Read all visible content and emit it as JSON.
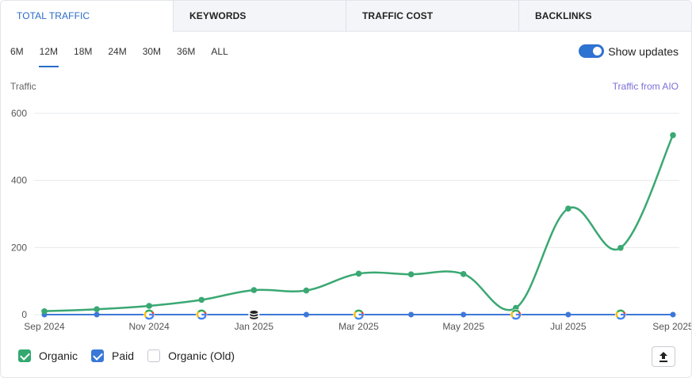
{
  "tabs": [
    {
      "label": "TOTAL TRAFFIC",
      "active": true
    },
    {
      "label": "KEYWORDS"
    },
    {
      "label": "TRAFFIC COST"
    },
    {
      "label": "BACKLINKS"
    }
  ],
  "ranges": [
    "6M",
    "12M",
    "18M",
    "24M",
    "30M",
    "36M",
    "ALL"
  ],
  "active_range": "12M",
  "toggle": {
    "label": "Show updates",
    "on": true
  },
  "y_title": "Traffic",
  "aio_link": "Traffic from AIO",
  "legend": [
    {
      "label": "Organic",
      "checked": true,
      "color": "#32a96f"
    },
    {
      "label": "Paid",
      "checked": true,
      "color": "#3a78d8"
    },
    {
      "label": "Organic (Old)",
      "checked": false
    }
  ],
  "colors": {
    "organic": "#3aa873",
    "paid": "#3d78d8",
    "accent": "#2a6bc8"
  },
  "export_icon": "upload-icon",
  "chart_data": {
    "type": "line",
    "x_tick_labels": [
      "Sep 2024",
      "Nov 2024",
      "Jan 2025",
      "Mar 2025",
      "May 2025",
      "Jul 2025",
      "Sep 2025"
    ],
    "y_ticks": [
      0,
      200,
      400,
      600
    ],
    "ylim": [
      0,
      600
    ],
    "grid": true,
    "points": [
      "Sep 2024",
      "Oct 2024",
      "Nov 2024",
      "Dec 2024",
      "Jan 2025",
      "Feb 2025",
      "Mar 2025",
      "Apr 2025",
      "May 2025",
      "Jun 2025",
      "Jul 2025",
      "Aug 2025",
      "Sep 2025"
    ],
    "series": [
      {
        "name": "Organic",
        "values": [
          10,
          16,
          26,
          44,
          73,
          72,
          122,
          120,
          121,
          20,
          316,
          199,
          535
        ]
      },
      {
        "name": "Paid",
        "values": [
          0,
          0,
          0,
          0,
          0,
          0,
          0,
          0,
          0,
          0,
          0,
          0,
          0
        ]
      }
    ],
    "update_markers": [
      {
        "at": "Nov 2024",
        "icon": "google-icon"
      },
      {
        "at": "Dec 2024",
        "icon": "google-icon"
      },
      {
        "at": "Jan 2025",
        "icon": "database-icon"
      },
      {
        "at": "Mar 2025",
        "icon": "google-icon"
      },
      {
        "at": "Jun 2025",
        "icon": "google-icon"
      },
      {
        "at": "Aug 2025",
        "icon": "google-icon"
      }
    ]
  }
}
